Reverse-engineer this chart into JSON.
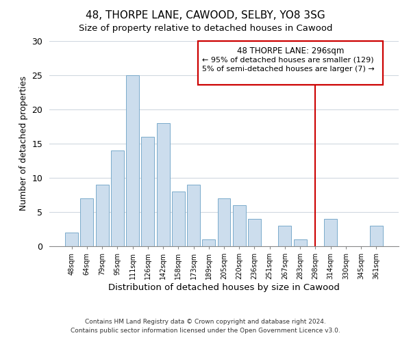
{
  "title": "48, THORPE LANE, CAWOOD, SELBY, YO8 3SG",
  "subtitle": "Size of property relative to detached houses in Cawood",
  "xlabel": "Distribution of detached houses by size in Cawood",
  "ylabel": "Number of detached properties",
  "bar_labels": [
    "48sqm",
    "64sqm",
    "79sqm",
    "95sqm",
    "111sqm",
    "126sqm",
    "142sqm",
    "158sqm",
    "173sqm",
    "189sqm",
    "205sqm",
    "220sqm",
    "236sqm",
    "251sqm",
    "267sqm",
    "283sqm",
    "298sqm",
    "314sqm",
    "330sqm",
    "345sqm",
    "361sqm"
  ],
  "bar_values": [
    2,
    7,
    9,
    14,
    25,
    16,
    18,
    8,
    9,
    1,
    7,
    6,
    4,
    0,
    3,
    1,
    0,
    4,
    0,
    0,
    3
  ],
  "bar_color": "#ccdded",
  "bar_edgecolor": "#7aaacb",
  "vline_x_index": 16,
  "vline_color": "#cc0000",
  "annotation_title": "48 THORPE LANE: 296sqm",
  "annotation_line1": "← 95% of detached houses are smaller (129)",
  "annotation_line2": "5% of semi-detached houses are larger (7) →",
  "annotation_box_edgecolor": "#cc0000",
  "footnote1": "Contains HM Land Registry data © Crown copyright and database right 2024.",
  "footnote2": "Contains public sector information licensed under the Open Government Licence v3.0.",
  "bg_color": "#ffffff",
  "grid_color": "#d0d8e0",
  "ylim": [
    0,
    30
  ],
  "yticks": [
    0,
    5,
    10,
    15,
    20,
    25,
    30
  ]
}
